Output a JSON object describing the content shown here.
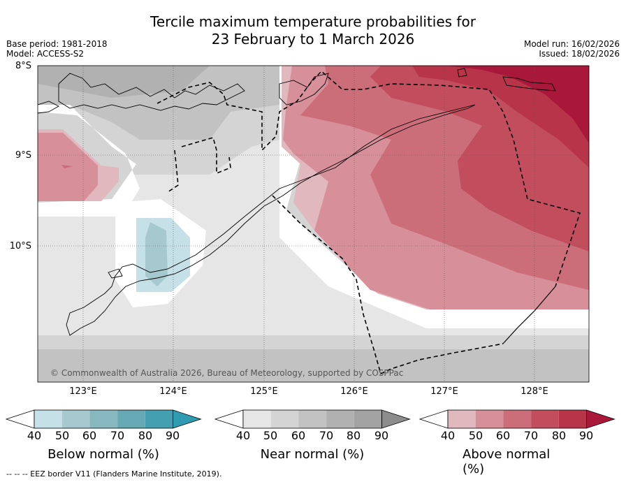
{
  "title_line1": "Tercile maximum temperature probabilities for",
  "title_line2": "23 February to 1 March 2026",
  "base_period": "Base period: 1981-2018",
  "model": "Model: ACCESS-S2",
  "model_run": "Model run: 16/02/2026",
  "issued": "Issued: 18/02/2026",
  "copyright": "© Commonwealth of Australia 2026, Bureau of Meteorology, supported by COSPPac",
  "lat_labels": [
    "8°S",
    "9°S",
    "10°S"
  ],
  "lon_labels": [
    "123°E",
    "124°E",
    "125°E",
    "126°E",
    "127°E",
    "128°E"
  ],
  "colorbars": [
    {
      "name": "below",
      "title": "Below normal (%)",
      "ticks": [
        "40",
        "50",
        "60",
        "70",
        "80",
        "90"
      ],
      "colors": [
        "#ffffff",
        "#c6e0e8",
        "#a6c9d0",
        "#87b8bf",
        "#66a9b4",
        "#44a0b0",
        "#2f9bb0"
      ]
    },
    {
      "name": "near",
      "title": "Near normal (%)",
      "ticks": [
        "40",
        "50",
        "60",
        "70",
        "80",
        "90"
      ],
      "colors": [
        "#ffffff",
        "#e6e6e6",
        "#d4d4d4",
        "#c2c2c2",
        "#b1b1b1",
        "#a3a3a3",
        "#8c8c8c"
      ]
    },
    {
      "name": "above",
      "title": "Above normal (%)",
      "ticks": [
        "40",
        "50",
        "60",
        "70",
        "80",
        "90"
      ],
      "colors": [
        "#ffffff",
        "#e2b8bf",
        "#d78f99",
        "#cb6e79",
        "#c24e5d",
        "#b83448",
        "#a9183a"
      ]
    }
  ],
  "footer": "--  --  -- EEZ border V11 (Flanders Marine Institute, 2019)."
}
